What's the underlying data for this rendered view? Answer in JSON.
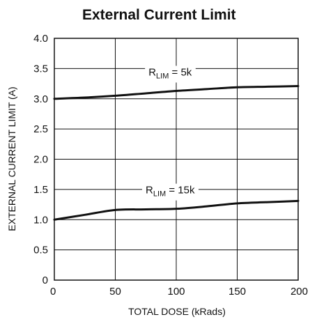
{
  "chart_data": {
    "type": "line",
    "title": "External Current Limit",
    "xlabel": "TOTAL DOSE (kRads)",
    "ylabel": "EXTERNAL CURRENT LIMIT (A)",
    "xlim": [
      0,
      200
    ],
    "ylim": [
      0,
      4.0
    ],
    "xticks": [
      "0",
      "50",
      "100",
      "150",
      "200"
    ],
    "yticks": [
      "0",
      "0.5",
      "1.0",
      "1.5",
      "2.0",
      "2.5",
      "3.0",
      "3.5",
      "4.0"
    ],
    "grid": true,
    "series": [
      {
        "label_main": "R",
        "label_sub": "LIM",
        "label_value": " = 5k",
        "x": [
          0,
          25,
          50,
          75,
          100,
          125,
          150,
          175,
          200
        ],
        "y": [
          3.0,
          3.02,
          3.05,
          3.09,
          3.13,
          3.16,
          3.19,
          3.2,
          3.21
        ]
      },
      {
        "label_main": "R",
        "label_sub": "LIM",
        "label_value": " = 15k",
        "x": [
          0,
          25,
          50,
          75,
          100,
          125,
          150,
          175,
          200
        ],
        "y": [
          1.0,
          1.08,
          1.16,
          1.17,
          1.18,
          1.22,
          1.27,
          1.29,
          1.31
        ]
      }
    ],
    "colors": {
      "line": "#111111",
      "grid": "#111111"
    }
  }
}
